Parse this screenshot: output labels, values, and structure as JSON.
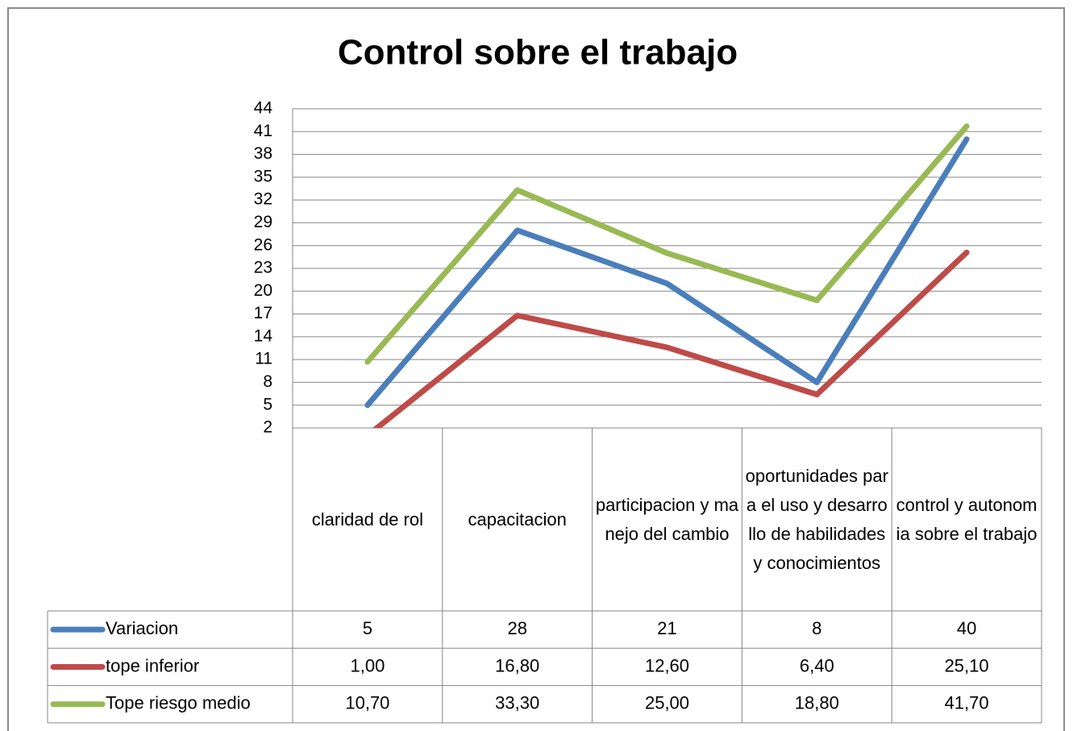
{
  "chart_data": {
    "type": "line",
    "title": "Control sobre el trabajo",
    "categories": [
      "claridad de rol",
      "capacitacion",
      "participacion y manejo del cambio",
      "oportunidades para el uso y desarrollo de habilidades y conocimientos",
      "control y autonomia sobre el trabajo"
    ],
    "series": [
      {
        "name": "Variacion",
        "color": "#4a7ebb",
        "values": [
          5,
          28,
          21,
          8,
          40
        ]
      },
      {
        "name": "tope inferior",
        "color": "#be4b48",
        "values": [
          1.0,
          16.8,
          12.6,
          6.4,
          25.1
        ],
        "value_labels": [
          "1,00",
          "16,80",
          "12,60",
          "6,40",
          "25,10"
        ]
      },
      {
        "name": "Tope riesgo medio",
        "color": "#98b954",
        "values": [
          10.7,
          33.3,
          25.0,
          18.8,
          41.7
        ],
        "value_labels": [
          "10,70",
          "33,30",
          "25,00",
          "18,80",
          "41,70"
        ]
      }
    ],
    "ylim": [
      2,
      44
    ],
    "yticks": [
      2,
      5,
      8,
      11,
      14,
      17,
      20,
      23,
      26,
      29,
      32,
      35,
      38,
      41,
      44
    ],
    "grid": true
  }
}
